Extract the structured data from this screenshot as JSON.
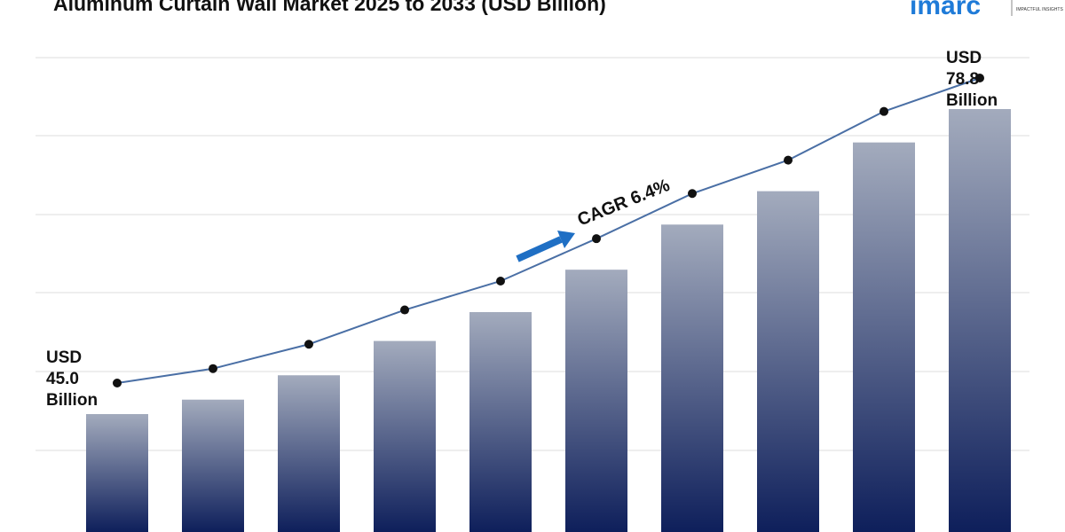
{
  "chart_data": {
    "type": "bar",
    "title": "Aluminum Curtain Wall Market 2025 to 2033 (USD Billion)",
    "values": [
      45.0,
      46.6,
      49.3,
      53.1,
      56.3,
      61.0,
      66.0,
      69.7,
      75.1,
      78.8
    ],
    "value_labels": [
      "USD 45.0 Billion",
      null,
      null,
      null,
      null,
      null,
      null,
      null,
      null,
      "USD 78.8 Billion"
    ],
    "annotation": "CAGR 6.4%",
    "color": "#0e1f5b",
    "line_color": "#4a6fa5",
    "logo": {
      "name": "imarc",
      "tagline": "IMPACTFUL INSIGHTS"
    }
  }
}
